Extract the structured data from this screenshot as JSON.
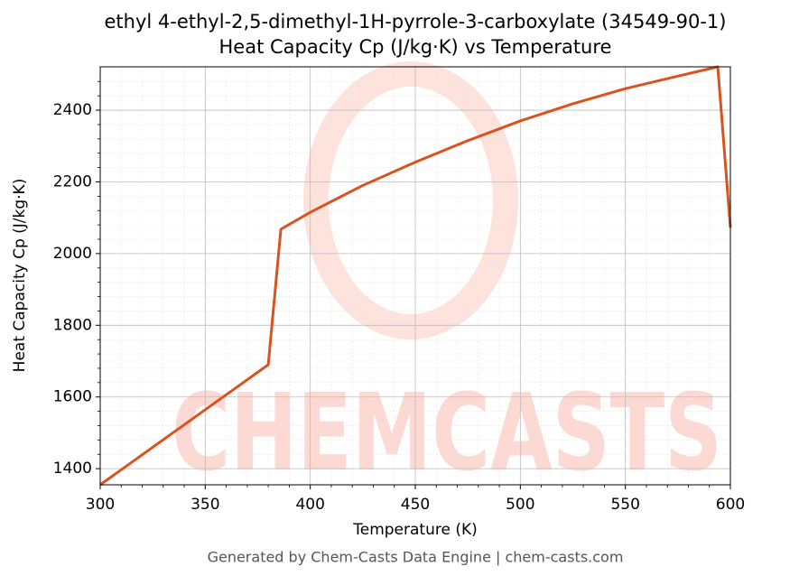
{
  "chart_data": {
    "type": "line",
    "title": [
      "ethyl 4-ethyl-2,5-dimethyl-1H-pyrrole-3-carboxylate (34549-90-1)",
      "Heat Capacity Cp (J/kg·K) vs Temperature"
    ],
    "x_label": "Temperature (K)",
    "y_label": "Heat Capacity Cp (J/kg·K)",
    "watermark": "CHEMCASTS",
    "footer": "Generated by Chem-Casts Data Engine | chem-casts.com",
    "x": [
      300,
      380,
      386,
      400,
      425,
      450,
      475,
      500,
      525,
      550,
      575,
      594,
      600
    ],
    "series": [
      {
        "name": "Cp",
        "color": "#d9531e",
        "values": [
          1355,
          1690,
          2068,
          2115,
          2190,
          2255,
          2315,
          2370,
          2418,
          2460,
          2495,
          2521,
          2072
        ]
      }
    ],
    "xlim": [
      300,
      600
    ],
    "ylim": [
      1355,
      2521
    ],
    "xticks": [
      300,
      350,
      400,
      450,
      500,
      550,
      600
    ],
    "yticks": [
      1400,
      1600,
      1800,
      2000,
      2200,
      2400
    ],
    "xminorticks": [
      310,
      320,
      330,
      340,
      360,
      370,
      380,
      390,
      410,
      420,
      430,
      440,
      460,
      470,
      480,
      490,
      510,
      520,
      530,
      540,
      560,
      570,
      580,
      590
    ],
    "yminorticks": [
      1440,
      1480,
      1520,
      1560,
      1640,
      1680,
      1720,
      1760,
      1840,
      1880,
      1920,
      1960,
      2040,
      2080,
      2120,
      2160,
      2240,
      2280,
      2320,
      2360,
      2440,
      2480
    ],
    "grid": true
  }
}
